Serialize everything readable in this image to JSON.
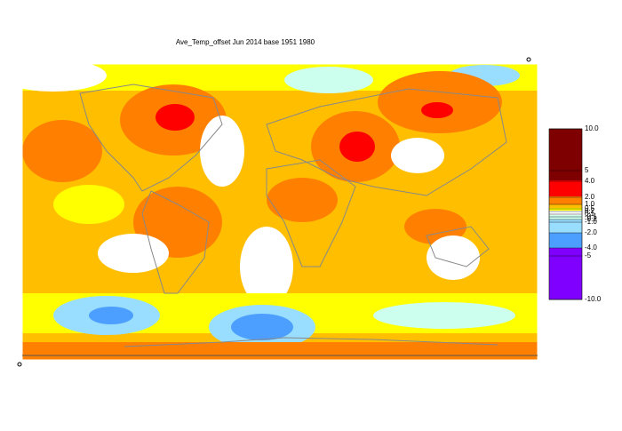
{
  "title": "Ave_Temp_offset Jun 2014  base 1951 1980",
  "legend": {
    "labels": [
      "10.0",
      "5",
      "4.0",
      "2.0",
      "1.0",
      "0.5",
      "0.2",
      "0.1",
      "-0.1",
      "-0.2",
      "-1.0",
      "-2.0",
      "-4.0",
      "-5",
      "-10.0"
    ],
    "colors": [
      "#7f0000",
      "#ff0000",
      "#ff8000",
      "#ffbf00",
      "#ffff00",
      "#ffffff",
      "#ccffee",
      "#99ddff",
      "#4d9fff",
      "#8000ff"
    ]
  }
}
